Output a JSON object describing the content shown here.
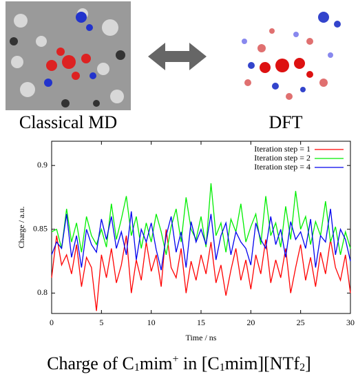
{
  "figure": {
    "left_label": "Classical MD",
    "right_label": "DFT",
    "caption": [
      "Charge of C",
      "1",
      "mim",
      "+",
      " in [C",
      "1",
      "mim][NTf",
      "2",
      "]"
    ]
  },
  "chart_data": {
    "type": "line",
    "xlabel": "Time / ns",
    "ylabel": "Charge / a.u.",
    "legend": "top-right",
    "x": [
      0,
      0.5,
      1,
      1.5,
      2,
      2.5,
      3,
      3.5,
      4,
      4.5,
      5,
      5.5,
      6,
      6.5,
      7,
      7.5,
      8,
      8.5,
      9,
      9.5,
      10,
      10.5,
      11,
      11.5,
      12,
      12.5,
      13,
      13.5,
      14,
      14.5,
      15,
      15.5,
      16,
      16.5,
      17,
      17.5,
      18,
      18.5,
      19,
      19.5,
      20,
      20.5,
      21,
      21.5,
      22,
      22.5,
      23,
      23.5,
      24,
      24.5,
      25,
      25.5,
      26,
      26.5,
      27,
      27.5,
      28,
      28.5,
      29,
      29.5,
      30
    ],
    "xlim": [
      0,
      30
    ],
    "xticks": [
      0,
      5,
      10,
      15,
      20,
      25,
      30
    ],
    "ylim": [
      0.784,
      0.919
    ],
    "yticks": [
      0.8,
      0.85,
      0.9
    ],
    "series": [
      {
        "name": "Iteration step = 1",
        "color": "#ff0000",
        "values": [
          0.812,
          0.845,
          0.822,
          0.83,
          0.815,
          0.838,
          0.805,
          0.828,
          0.82,
          0.786,
          0.83,
          0.812,
          0.835,
          0.808,
          0.822,
          0.845,
          0.8,
          0.826,
          0.81,
          0.84,
          0.817,
          0.83,
          0.805,
          0.85,
          0.82,
          0.812,
          0.835,
          0.8,
          0.825,
          0.81,
          0.83,
          0.815,
          0.84,
          0.808,
          0.822,
          0.798,
          0.818,
          0.835,
          0.81,
          0.826,
          0.803,
          0.83,
          0.815,
          0.842,
          0.808,
          0.826,
          0.812,
          0.835,
          0.8,
          0.82,
          0.838,
          0.81,
          0.828,
          0.805,
          0.832,
          0.815,
          0.842,
          0.82,
          0.81,
          0.83,
          0.8
        ]
      },
      {
        "name": "Iteration step = 2",
        "color": "#00ee00",
        "values": [
          0.848,
          0.85,
          0.835,
          0.866,
          0.84,
          0.855,
          0.832,
          0.86,
          0.845,
          0.838,
          0.85,
          0.836,
          0.87,
          0.842,
          0.858,
          0.876,
          0.845,
          0.86,
          0.835,
          0.855,
          0.84,
          0.862,
          0.848,
          0.83,
          0.852,
          0.866,
          0.84,
          0.875,
          0.85,
          0.842,
          0.86,
          0.836,
          0.886,
          0.845,
          0.855,
          0.832,
          0.858,
          0.848,
          0.87,
          0.84,
          0.852,
          0.862,
          0.838,
          0.876,
          0.845,
          0.855,
          0.836,
          0.868,
          0.842,
          0.88,
          0.85,
          0.86,
          0.838,
          0.856,
          0.845,
          0.872,
          0.84,
          0.852,
          0.83,
          0.848,
          0.835
        ]
      },
      {
        "name": "Iteration step = 4",
        "color": "#0000ee",
        "values": [
          0.83,
          0.84,
          0.835,
          0.862,
          0.828,
          0.845,
          0.82,
          0.85,
          0.838,
          0.832,
          0.858,
          0.842,
          0.86,
          0.835,
          0.848,
          0.83,
          0.864,
          0.826,
          0.85,
          0.84,
          0.855,
          0.834,
          0.818,
          0.845,
          0.86,
          0.832,
          0.848,
          0.82,
          0.856,
          0.84,
          0.85,
          0.838,
          0.862,
          0.826,
          0.845,
          0.855,
          0.83,
          0.848,
          0.84,
          0.835,
          0.822,
          0.855,
          0.842,
          0.835,
          0.86,
          0.838,
          0.85,
          0.828,
          0.856,
          0.842,
          0.848,
          0.835,
          0.858,
          0.82,
          0.845,
          0.84,
          0.866,
          0.83,
          0.85,
          0.842,
          0.825
        ]
      }
    ]
  }
}
